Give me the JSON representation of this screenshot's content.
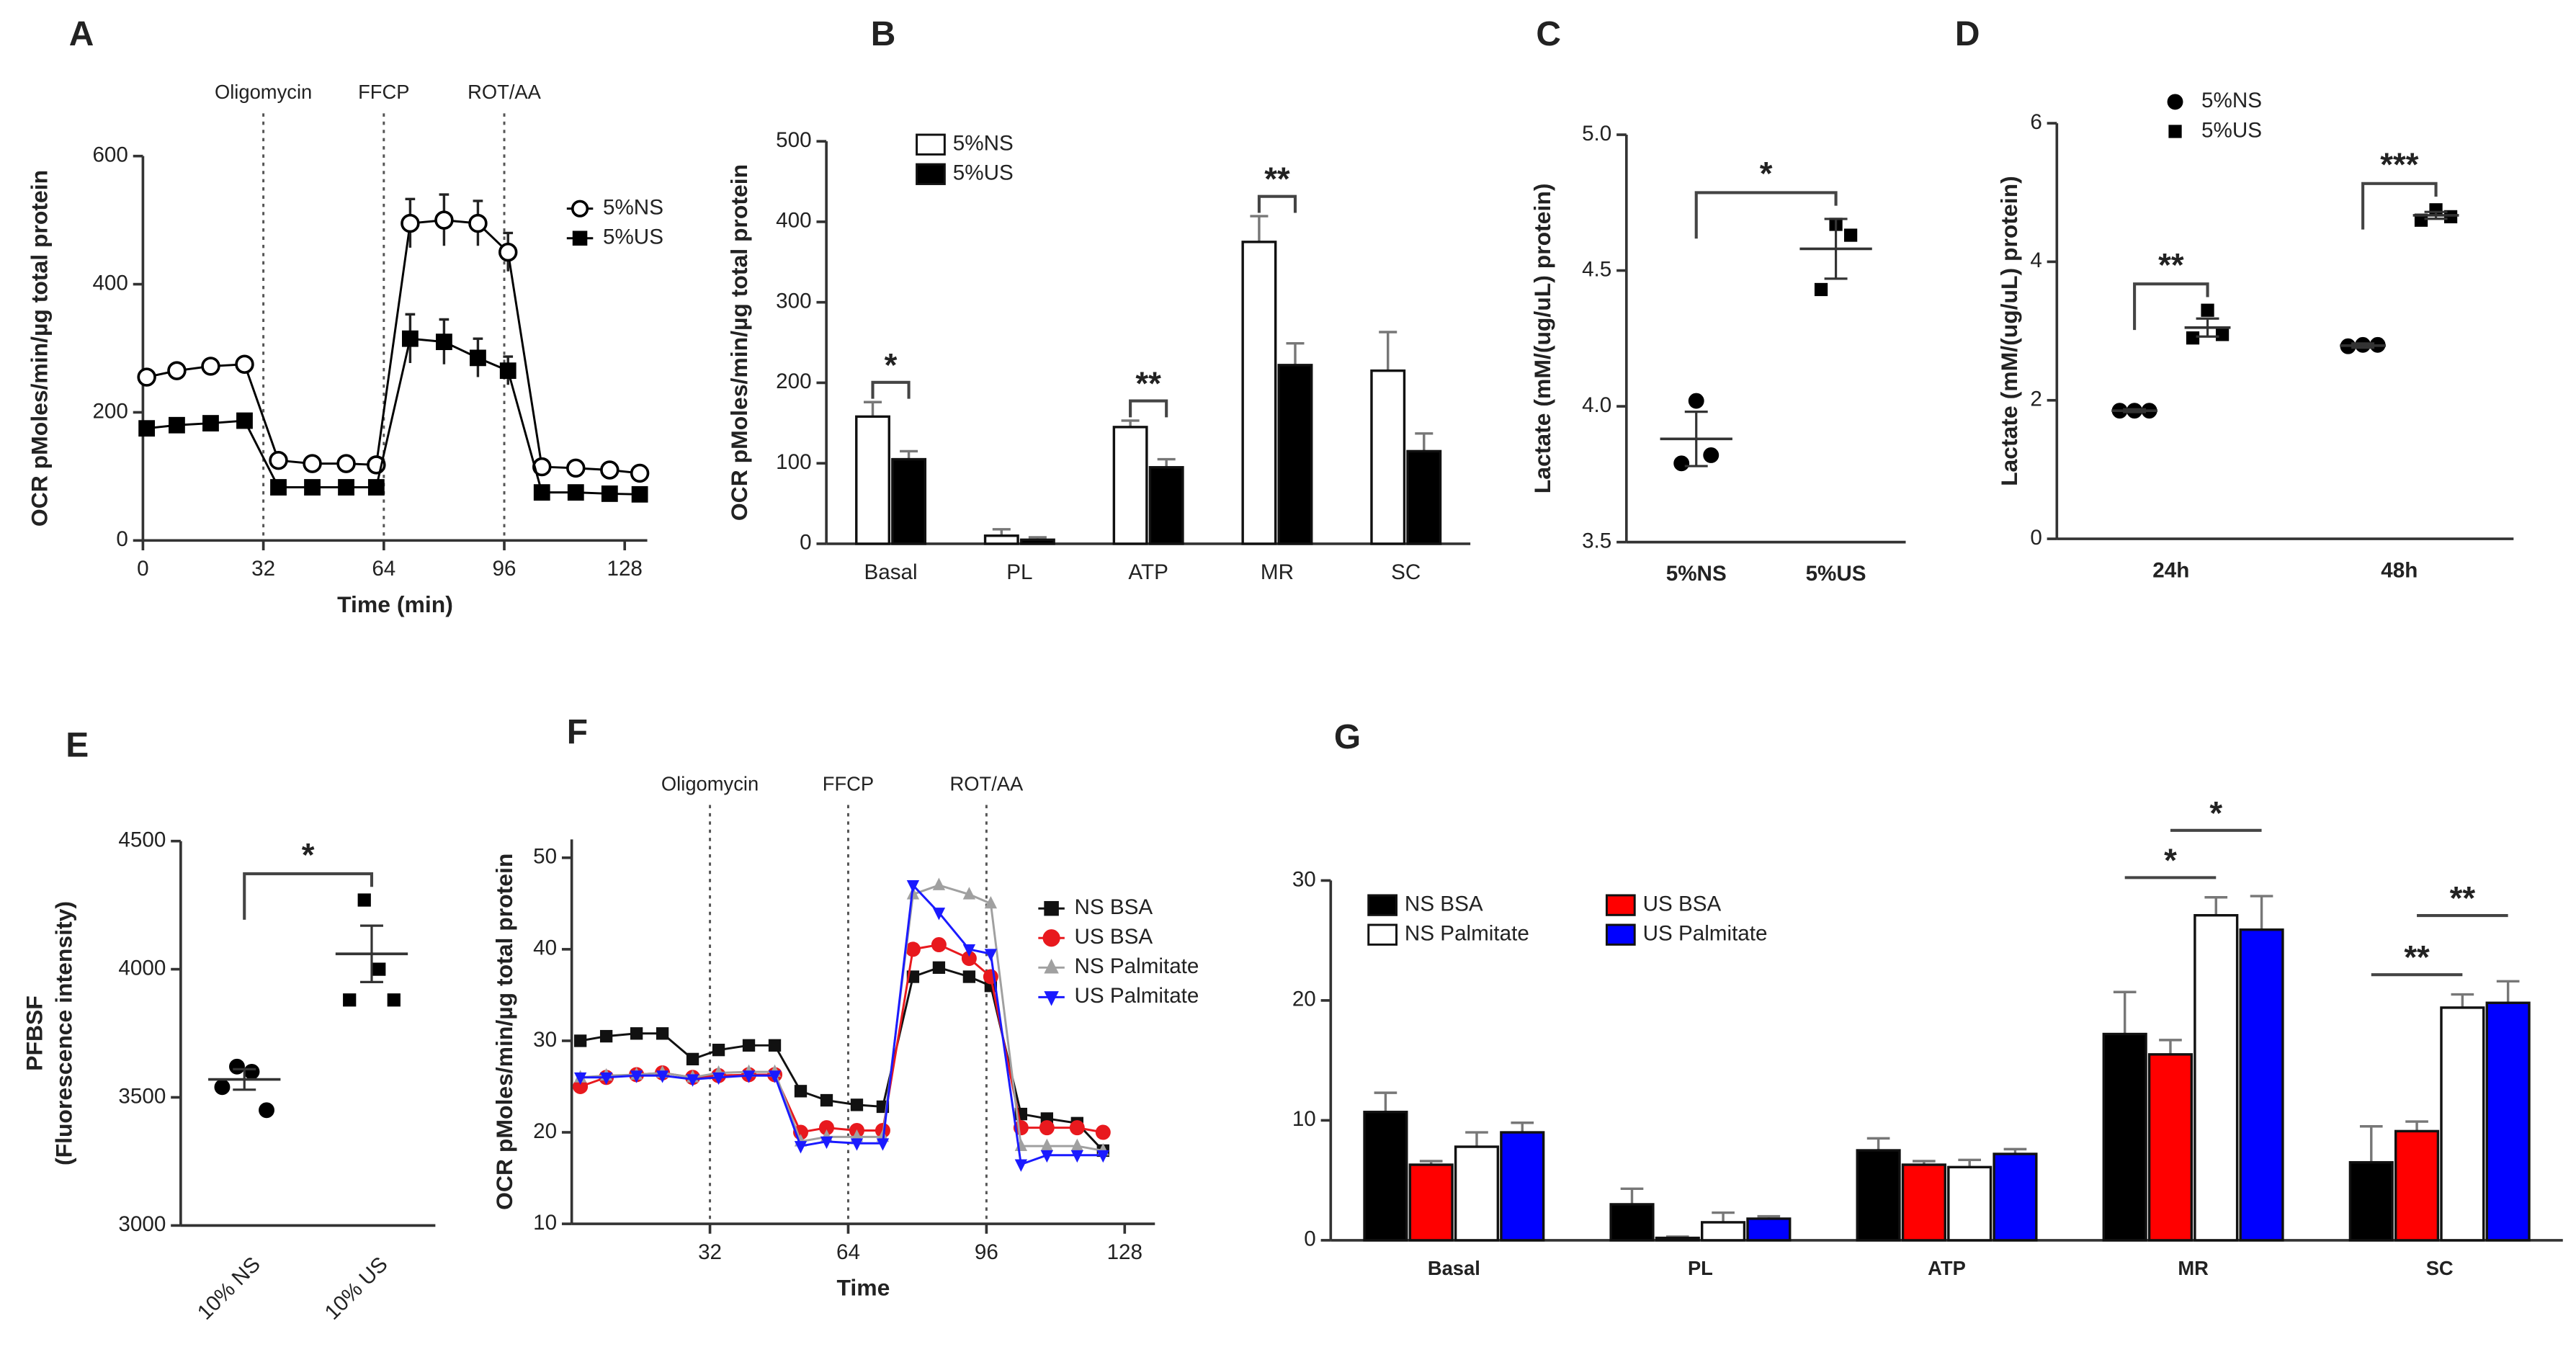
{
  "chart_data": [
    {
      "panel": "A",
      "type": "line",
      "ylabel": "OCR  pMoles/min/µg total protein",
      "xlabel": "Time (min)",
      "x": [
        1,
        9,
        18,
        27,
        36,
        45,
        54,
        62,
        71,
        80,
        89,
        97,
        106,
        115,
        124,
        132
      ],
      "xlim": [
        0,
        134
      ],
      "xticks": [
        0,
        32,
        64,
        96,
        128
      ],
      "ylim": [
        0,
        600
      ],
      "yticks": [
        0,
        200,
        400,
        600
      ],
      "annotations": [
        {
          "x": 32,
          "label": "Oligomycin"
        },
        {
          "x": 64,
          "label": "FFCP"
        },
        {
          "x": 96,
          "label": "ROT/AA"
        }
      ],
      "legend": "upper right",
      "series": [
        {
          "name": "5%NS",
          "color": "#000000",
          "marker": "circle-open",
          "values": [
            255,
            265,
            272,
            275,
            125,
            120,
            120,
            118,
            495,
            500,
            495,
            450,
            115,
            113,
            110,
            105
          ],
          "errors": [
            8,
            6,
            6,
            6,
            6,
            6,
            6,
            6,
            38,
            40,
            35,
            30,
            8,
            6,
            6,
            6
          ]
        },
        {
          "name": "5%US",
          "color": "#000000",
          "marker": "square",
          "values": [
            175,
            180,
            183,
            187,
            83,
            83,
            83,
            83,
            315,
            310,
            285,
            265,
            75,
            75,
            73,
            72
          ],
          "errors": [
            10,
            8,
            8,
            10,
            6,
            6,
            6,
            6,
            38,
            35,
            30,
            22,
            8,
            6,
            6,
            6
          ]
        }
      ]
    },
    {
      "panel": "B",
      "type": "bar",
      "ylabel": "OCR  pMoles/min/µg total protein",
      "categories": [
        "Basal",
        "PL",
        "ATP",
        "MR",
        "SC"
      ],
      "ylim": [
        0,
        500
      ],
      "yticks": [
        0,
        100,
        200,
        300,
        400,
        500
      ],
      "legend": "upper left",
      "series": [
        {
          "name": "5%NS",
          "color": "#ffffff",
          "values": [
            158,
            10,
            145,
            375,
            215
          ],
          "errors": [
            18,
            8,
            8,
            32,
            48
          ]
        },
        {
          "name": "5%US",
          "color": "#000000",
          "values": [
            105,
            5,
            95,
            222,
            115
          ],
          "errors": [
            10,
            3,
            10,
            27,
            22
          ]
        }
      ],
      "significance": [
        {
          "category": "Basal",
          "label": "*"
        },
        {
          "category": "ATP",
          "label": "**"
        },
        {
          "category": "MR",
          "label": "**"
        }
      ]
    },
    {
      "panel": "C",
      "type": "dot",
      "ylabel": "Lactate (mM/(ug/uL) protein)",
      "categories": [
        "5%NS",
        "5%US"
      ],
      "ylim": [
        3.5,
        5.0
      ],
      "yticks": [
        3.5,
        {
          "value": 4,
          "label": "4.0"
        },
        4.5,
        {
          "value": 5,
          "label": "5.0"
        }
      ],
      "series": [
        {
          "marker": "circle",
          "color": "#000000",
          "points": [
            [
              3.79,
              4.02,
              3.82
            ],
            null
          ],
          "means": [
            3.88,
            null
          ],
          "sems": [
            0.1,
            null
          ]
        },
        {
          "marker": "square",
          "color": "#000000",
          "points": [
            null,
            [
              4.43,
              4.67,
              4.63
            ]
          ],
          "means": [
            null,
            4.58
          ],
          "sems": [
            null,
            0.11
          ]
        }
      ],
      "significance": [
        {
          "between": [
            "5%NS",
            "5%US"
          ],
          "label": "*"
        }
      ]
    },
    {
      "panel": "D",
      "type": "dot",
      "ylabel": "Lactate (mM/(ug/uL) protein)",
      "categories": [
        "24h",
        "48h"
      ],
      "ylim": [
        0,
        6
      ],
      "yticks": [
        0,
        2,
        4,
        6
      ],
      "legend": "upper left",
      "series": [
        {
          "name": "5%NS",
          "marker": "circle",
          "color": "#000000",
          "points": [
            [
              1.85,
              1.85,
              1.85
            ],
            [
              2.78,
              2.8,
              2.8
            ]
          ],
          "means": [
            1.85,
            2.79
          ],
          "sems": [
            0.02,
            0.03
          ]
        },
        {
          "name": "5%US",
          "marker": "square",
          "color": "#000000",
          "points": [
            [
              2.9,
              3.3,
              2.95
            ],
            [
              4.6,
              4.75,
              4.65
            ]
          ],
          "means": [
            3.05,
            4.67
          ],
          "sems": [
            0.13,
            0.05
          ]
        }
      ],
      "significance": [
        {
          "category": "24h",
          "label": "**"
        },
        {
          "category": "48h",
          "label": "***"
        }
      ]
    },
    {
      "panel": "E",
      "type": "dot",
      "ylabel": [
        "PFBSF",
        "(Fluorescence intensity)"
      ],
      "categories": [
        "10% NS",
        "10% US"
      ],
      "ylim": [
        3000,
        4500
      ],
      "yticks": [
        3000,
        3500,
        4000,
        4500
      ],
      "series": [
        {
          "marker": "circle",
          "color": "#000000",
          "points": [
            [
              3540,
              3620,
              3600,
              3450
            ],
            null
          ],
          "means": [
            3570,
            null
          ],
          "sems": [
            40,
            null
          ]
        },
        {
          "marker": "square",
          "color": "#000000",
          "points": [
            null,
            [
              3880,
              4270,
              4000,
              3880
            ]
          ],
          "means": [
            null,
            4060
          ],
          "sems": [
            null,
            110
          ]
        }
      ],
      "significance": [
        {
          "between": [
            "10% NS",
            "10% US"
          ],
          "label": "*"
        }
      ]
    },
    {
      "panel": "F",
      "type": "line",
      "ylabel": "OCR pMoles/min/µg total protein",
      "xlabel": "Time",
      "x": [
        2,
        8,
        15,
        21,
        28,
        34,
        41,
        47,
        53,
        59,
        66,
        72,
        79,
        85,
        92,
        97,
        104,
        110,
        117,
        123
      ],
      "xlim": [
        0,
        135
      ],
      "xticks": [
        32,
        64,
        96,
        128
      ],
      "ylim": [
        10,
        52
      ],
      "yticks": [
        10,
        20,
        30,
        40,
        50
      ],
      "annotations": [
        {
          "x": 32,
          "label": "Oligomycin"
        },
        {
          "x": 64,
          "label": "FFCP"
        },
        {
          "x": 96,
          "label": "ROT/AA"
        }
      ],
      "legend": "right",
      "series": [
        {
          "name": "NS BSA",
          "color": "#111111",
          "marker": "square",
          "values": [
            30,
            30.5,
            30.8,
            30.8,
            28,
            29,
            29.5,
            29.5,
            24.5,
            23.5,
            23,
            22.8,
            37,
            38,
            37,
            36,
            22,
            21.5,
            21,
            18
          ]
        },
        {
          "name": "US BSA",
          "color": "#e8191e",
          "marker": "circle",
          "values": [
            25,
            26,
            26.3,
            26.5,
            26,
            26.2,
            26.3,
            26.3,
            20,
            20.5,
            20.2,
            20.2,
            40,
            40.5,
            39,
            37,
            20.5,
            20.5,
            20.5,
            20
          ]
        },
        {
          "name": "NS Palmitate",
          "color": "#a0a0a0",
          "marker": "triangle",
          "values": [
            26,
            26.2,
            26.3,
            26.5,
            26,
            26.5,
            26.6,
            26.6,
            19,
            19.5,
            19.5,
            19.5,
            46,
            47,
            46,
            45,
            18.5,
            18.5,
            18.5,
            18
          ]
        },
        {
          "name": "US Palmitate",
          "color": "#1a1aff",
          "marker": "triangle-down",
          "values": [
            26,
            26,
            26.2,
            26.2,
            25.8,
            26,
            26.2,
            26.2,
            18.5,
            19,
            18.8,
            18.8,
            47,
            44,
            40,
            39.5,
            16.5,
            17.5,
            17.5,
            17.5
          ]
        }
      ]
    },
    {
      "panel": "G",
      "type": "bar",
      "categories": [
        "Basal",
        "PL",
        "ATP",
        "MR",
        "SC"
      ],
      "ylim": [
        0,
        30
      ],
      "yticks": [
        0,
        10,
        20,
        30
      ],
      "legend": "upper left",
      "legend_columns": 2,
      "series": [
        {
          "name": "NS BSA",
          "color": "#000000",
          "values": [
            10.7,
            3.0,
            7.5,
            17.2,
            6.5
          ],
          "errors": [
            1.6,
            1.3,
            1.0,
            3.5,
            3.0
          ]
        },
        {
          "name": "US BSA",
          "color": "#ff0000",
          "values": [
            6.3,
            0.2,
            6.3,
            15.5,
            9.1
          ],
          "errors": [
            0.3,
            0.1,
            0.3,
            1.2,
            0.8
          ]
        },
        {
          "name": "NS Palmitate",
          "color": "#ffffff",
          "values": [
            7.8,
            1.5,
            6.1,
            27.1,
            19.4
          ],
          "errors": [
            1.2,
            0.8,
            0.6,
            1.5,
            1.1
          ]
        },
        {
          "name": "US Palmitate",
          "color": "#0000ff",
          "values": [
            9.0,
            1.8,
            7.2,
            25.9,
            19.8
          ],
          "errors": [
            0.8,
            0.2,
            0.4,
            2.8,
            1.8
          ]
        }
      ],
      "significance": [
        {
          "category": "MR",
          "between": [
            "NS BSA",
            "NS Palmitate"
          ],
          "label": "*"
        },
        {
          "category": "MR",
          "between": [
            "US BSA",
            "US Palmitate"
          ],
          "label": "*"
        },
        {
          "category": "SC",
          "between": [
            "NS BSA",
            "NS Palmitate"
          ],
          "label": "**"
        },
        {
          "category": "SC",
          "between": [
            "US BSA",
            "US Palmitate"
          ],
          "label": "**"
        }
      ]
    }
  ]
}
